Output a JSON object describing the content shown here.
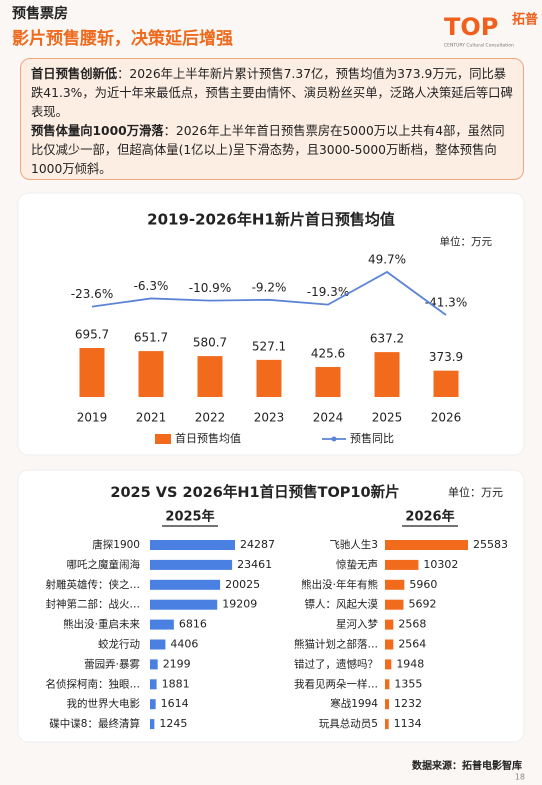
{
  "header": {
    "section": "预售票房",
    "headline": "影片预售腰斩，决策延后增强",
    "logo_mark": "TOP",
    "logo_cn": "拓普",
    "logo_en": "CENTURY Cultural Consultation"
  },
  "summary": [
    {
      "lead": "首日预售创新低",
      "text": "：2026年上半年新片累计预售7.37亿，预售均值为373.9万元，同比暴跌41.3%，为近十年来最低点，预售主要由情怀、演员粉丝买单，泛路人决策延后等口碑表现。"
    },
    {
      "lead": "预售体量向1000万滑落",
      "text": "：2026年上半年首日预售票房在5000万以上共有4部，虽然同比仅减少一部，但超高体量(1亿以上)呈下滑态势，且3000-5000万断档，整体预售向1000万倾斜。"
    }
  ],
  "chart_data": [
    {
      "type": "bar",
      "title": "2019-2026年H1新片首日预售均值",
      "unit": "单位：万元",
      "categories": [
        "2019",
        "2021",
        "2022",
        "2023",
        "2024",
        "2025",
        "2026"
      ],
      "series": [
        {
          "name": "首日预售均值",
          "color": "#f26a1b",
          "values": [
            695.7,
            651.7,
            580.7,
            527.1,
            425.6,
            637.2,
            373.9
          ]
        },
        {
          "name": "预售同比",
          "type": "line",
          "axis": "y2",
          "color": "#5b83d6",
          "values": [
            -23.6,
            -6.3,
            -10.9,
            -9.2,
            -19.3,
            49.7,
            -41.3
          ],
          "value_labels": [
            "-23.6%",
            "-6.3%",
            "-10.9%",
            "-9.2%",
            "-19.3%",
            "49.7%",
            "-41.3%"
          ]
        }
      ]
    },
    {
      "type": "hbar",
      "title": "2025 VS 2026年H1首日预售TOP10新片",
      "unit": "单位：万元",
      "subtitle": "2025年",
      "color": "#4a80e2",
      "categories": [
        "唐探1900",
        "哪吒之魔童闹海",
        "射雕英雄传：侠之…",
        "封神第二部：战火…",
        "熊出没·重启未来",
        "蛟龙行动",
        "蕾园弄·暴雾",
        "名侦探柯南：独眼…",
        "我的世界大电影",
        "碟中谍8：最终清算"
      ],
      "values": [
        24287,
        23461,
        20025,
        19209,
        6816,
        4406,
        2199,
        1881,
        1614,
        1245
      ]
    },
    {
      "type": "hbar",
      "subtitle": "2026年",
      "color": "#f26a1b",
      "categories": [
        "飞驰人生3",
        "惊蛰无声",
        "熊出没·年年有熊",
        "镖人：风起大漠",
        "星河入梦",
        "熊猫计划之部落…",
        "错过了，遗憾吗？",
        "我看见两朵一样…",
        "寒战1994",
        "玩具总动员5"
      ],
      "values": [
        25583,
        10302,
        5960,
        5692,
        2568,
        2564,
        1948,
        1355,
        1232,
        1134
      ]
    }
  ],
  "footer": {
    "source": "数据来源：拓普电影智库",
    "page": "18"
  }
}
